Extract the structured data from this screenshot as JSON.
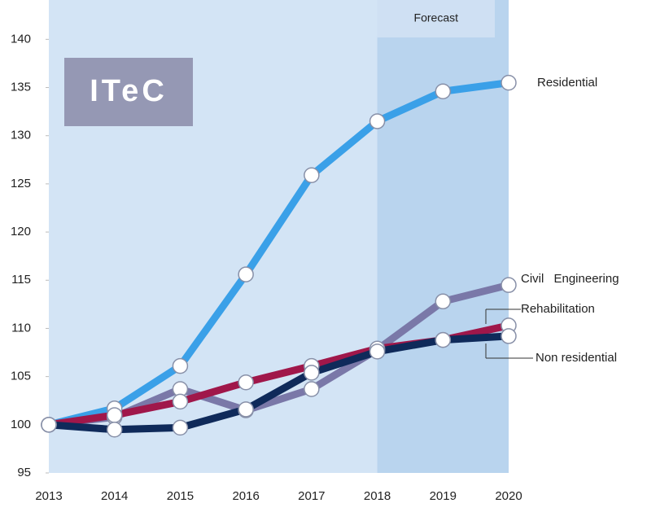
{
  "chart_data": {
    "type": "line",
    "logo": "ITeC",
    "forecast": {
      "label": "Forecast",
      "from": 2018,
      "to": 2020
    },
    "x": [
      2013,
      2014,
      2015,
      2016,
      2017,
      2018,
      2019,
      2020
    ],
    "xlim": [
      2013,
      2020
    ],
    "ylim": [
      95,
      144
    ],
    "yticks": [
      95,
      100,
      105,
      110,
      115,
      120,
      125,
      130,
      135,
      140
    ],
    "series": [
      {
        "name": "Residential",
        "color": "#3aa0e8",
        "values": [
          100,
          101.7,
          106.1,
          115.6,
          125.9,
          131.5,
          134.6,
          135.5
        ]
      },
      {
        "name": "Civil Engineering",
        "color": "#7a78a8",
        "values": [
          100,
          100.8,
          103.7,
          101.5,
          103.7,
          107.8,
          112.8,
          114.5
        ]
      },
      {
        "name": "Rehabilitation",
        "color": "#a0174a",
        "values": [
          100,
          101,
          102.4,
          104.4,
          106.1,
          107.9,
          108.8,
          110.3
        ]
      },
      {
        "name": "Non residential",
        "color": "#0f2a5a",
        "values": [
          100,
          99.5,
          99.7,
          101.6,
          105.4,
          107.6,
          108.8,
          109.2
        ]
      }
    ]
  }
}
